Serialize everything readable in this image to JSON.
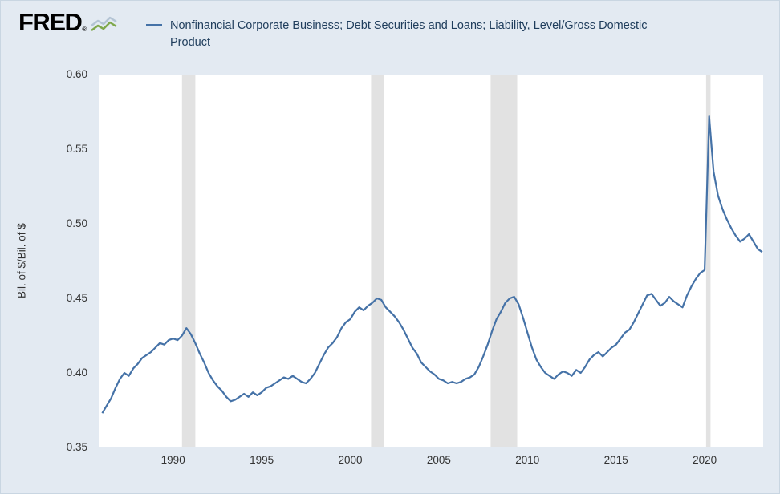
{
  "header": {
    "logo_text": "FRED",
    "logo_registered": "®"
  },
  "legend": {
    "label_line1": "Nonfinancial Corporate Business; Debt Securities and Loans; Liability, Level/Gross Domestic",
    "label_line2": "Product",
    "marker_color": "#4572a7"
  },
  "y_axis_title": "Bil. of $/Bil. of $",
  "chart_data": {
    "type": "line",
    "title": "Nonfinancial Corporate Business; Debt Securities and Loans; Liability, Level/Gross Domestic Product",
    "xlabel": "",
    "ylabel": "Bil. of $/Bil. of $",
    "x_range": [
      1985.8,
      2023.3
    ],
    "y_range": [
      0.35,
      0.6
    ],
    "x_ticks": [
      1990,
      1995,
      2000,
      2005,
      2010,
      2015,
      2020
    ],
    "y_ticks": [
      0.35,
      0.4,
      0.45,
      0.5,
      0.55,
      0.6
    ],
    "grid": false,
    "legend_position": "top",
    "line_color": "#4572a7",
    "recession_color": "#e2e2e2",
    "recession_bands": [
      [
        1990.5,
        1991.25
      ],
      [
        2001.17,
        2001.92
      ],
      [
        2007.92,
        2009.42
      ],
      [
        2020.08,
        2020.33
      ]
    ],
    "series": [
      {
        "name": "Nonfinancial Corporate Business; Debt Securities and Loans; Liability, Level/Gross Domestic Product",
        "frequency": "quarterly",
        "x_start": 1986.0,
        "x_step": 0.25,
        "values": [
          0.373,
          0.378,
          0.383,
          0.39,
          0.396,
          0.4,
          0.398,
          0.403,
          0.406,
          0.41,
          0.412,
          0.414,
          0.417,
          0.42,
          0.419,
          0.422,
          0.423,
          0.422,
          0.425,
          0.43,
          0.426,
          0.42,
          0.413,
          0.407,
          0.4,
          0.395,
          0.391,
          0.388,
          0.384,
          0.381,
          0.382,
          0.384,
          0.386,
          0.384,
          0.387,
          0.385,
          0.387,
          0.39,
          0.391,
          0.393,
          0.395,
          0.397,
          0.396,
          0.398,
          0.396,
          0.394,
          0.393,
          0.396,
          0.4,
          0.406,
          0.412,
          0.417,
          0.42,
          0.424,
          0.43,
          0.434,
          0.436,
          0.441,
          0.444,
          0.442,
          0.445,
          0.447,
          0.45,
          0.449,
          0.444,
          0.441,
          0.438,
          0.434,
          0.429,
          0.423,
          0.417,
          0.413,
          0.407,
          0.404,
          0.401,
          0.399,
          0.396,
          0.395,
          0.393,
          0.394,
          0.393,
          0.394,
          0.396,
          0.397,
          0.399,
          0.404,
          0.411,
          0.419,
          0.428,
          0.436,
          0.441,
          0.447,
          0.45,
          0.451,
          0.446,
          0.437,
          0.427,
          0.417,
          0.409,
          0.404,
          0.4,
          0.398,
          0.396,
          0.399,
          0.401,
          0.4,
          0.398,
          0.402,
          0.4,
          0.404,
          0.409,
          0.412,
          0.414,
          0.411,
          0.414,
          0.417,
          0.419,
          0.423,
          0.427,
          0.429,
          0.434,
          0.44,
          0.446,
          0.452,
          0.453,
          0.449,
          0.445,
          0.447,
          0.451,
          0.448,
          0.446,
          0.444,
          0.452,
          0.458,
          0.463,
          0.467,
          0.469,
          0.572,
          0.535,
          0.519,
          0.51,
          0.503,
          0.497,
          0.492,
          0.488,
          0.49,
          0.493,
          0.488,
          0.483,
          0.481
        ]
      }
    ]
  }
}
